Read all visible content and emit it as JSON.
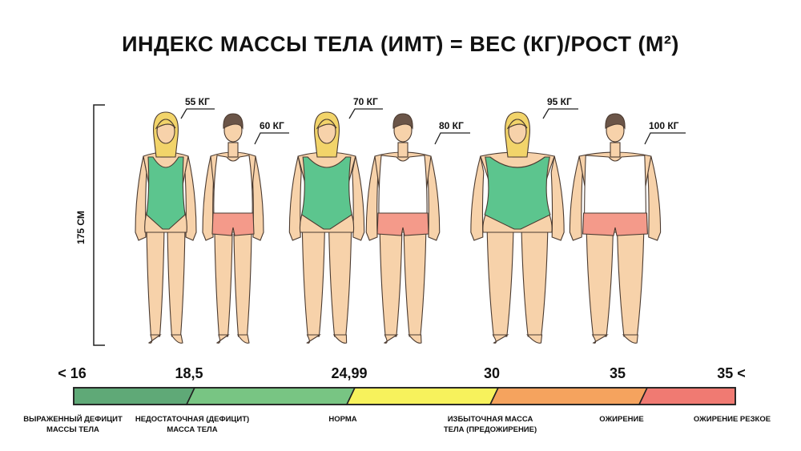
{
  "title": "ИНДЕКС МАССЫ ТЕЛА (ИМТ) = ВЕС (КГ)/РОСТ (М²)",
  "height_label": "175 СМ",
  "figures": [
    {
      "sex": "female",
      "weight": "55 КГ"
    },
    {
      "sex": "male",
      "weight": "60 КГ"
    },
    {
      "sex": "female",
      "weight": "70 КГ"
    },
    {
      "sex": "male",
      "weight": "80 КГ"
    },
    {
      "sex": "female",
      "weight": "95 КГ"
    },
    {
      "sex": "male",
      "weight": "100 КГ"
    }
  ],
  "scale": {
    "ticks": [
      "< 16",
      "18,5",
      "24,99",
      "30",
      "35",
      "35 <"
    ],
    "segments": [
      {
        "label": "ВЫРАЖЕННЫЙ ДЕФИЦИТ МАССЫ ТЕЛА",
        "color": "#5fa977"
      },
      {
        "label": "НЕДОСТАТОЧНАЯ (ДЕФИЦИТ) МАССА ТЕЛА",
        "color": "#78c583"
      },
      {
        "label": "НОРМА",
        "color": "#f7f25c"
      },
      {
        "label": "ИЗБЫТОЧНАЯ МАССА ТЕЛА (ПРЕДОЖИРЕНИЕ)",
        "color": "#f5a35e"
      },
      {
        "label": "ОЖИРЕНИЕ",
        "color": "#f07a72"
      },
      {
        "label": "ОЖИРЕНИЕ РЕЗКОЕ",
        "color": "#ee6e6e"
      }
    ],
    "category_labels": [
      {
        "line1": "ВЫРАЖЕННЫЙ ДЕФИЦИТ",
        "line2": "МАССЫ ТЕЛА"
      },
      {
        "line1": "НЕДОСТАТОЧНАЯ (ДЕФИЦИТ)",
        "line2": "МАССА ТЕЛА"
      },
      {
        "line1": "НОРМА",
        "line2": ""
      },
      {
        "line1": "ИЗБЫТОЧНАЯ МАССА",
        "line2": "ТЕЛА (ПРЕДОЖИРЕНИЕ)"
      },
      {
        "line1": "ОЖИРЕНИЕ",
        "line2": ""
      },
      {
        "line1": "ОЖИРЕНИЕ РЕЗКОЕ",
        "line2": ""
      }
    ]
  },
  "colors": {
    "skin": "#f7d2aa",
    "skin_stroke": "#4a3a30",
    "hair_female": "#f2d46a",
    "hair_male": "#6b5548",
    "swimsuit": "#5cc58e",
    "shorts": "#f49a8a",
    "shirt": "#ffffff"
  }
}
